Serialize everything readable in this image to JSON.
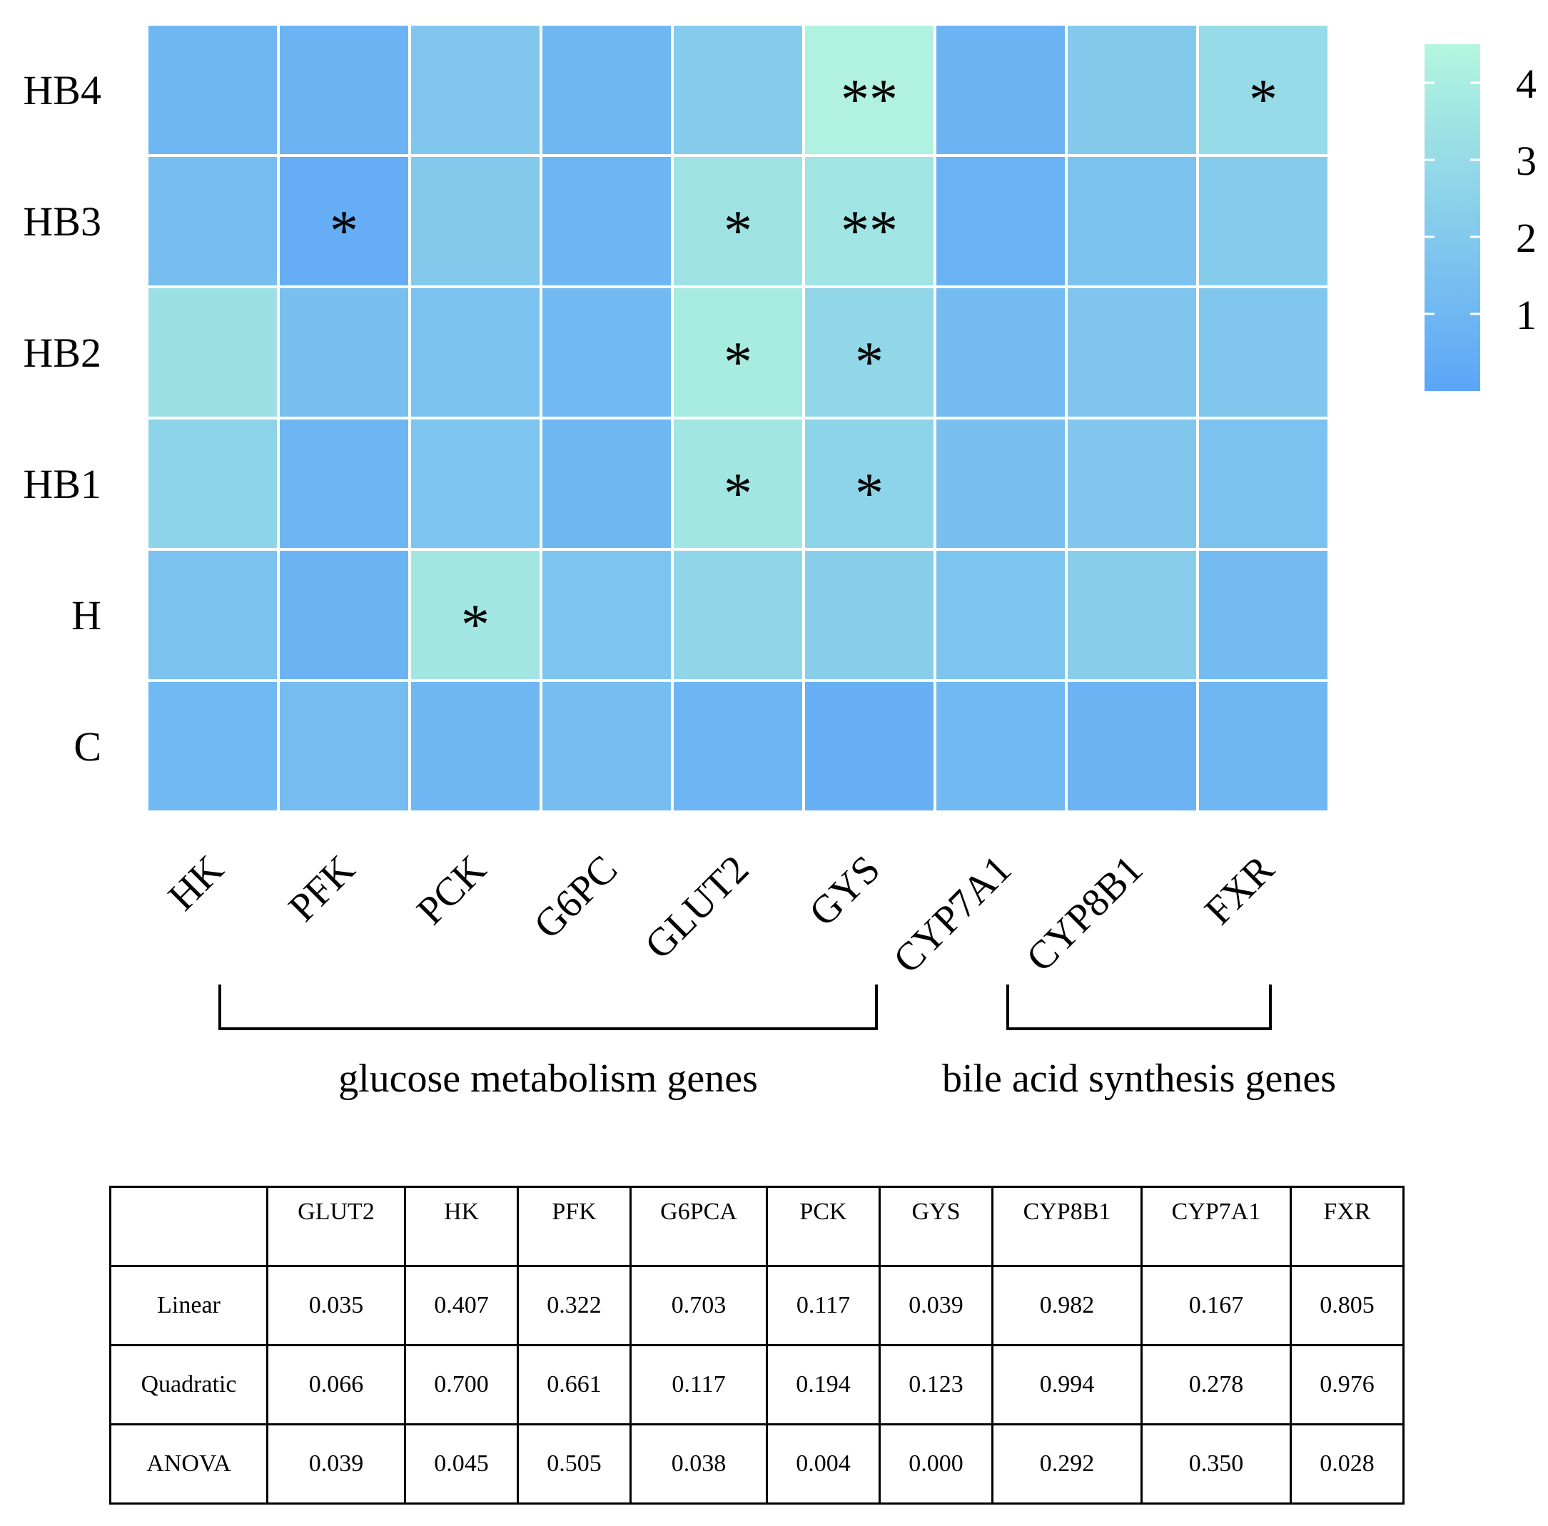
{
  "chart_data": [
    {
      "type": "heatmap",
      "title": "",
      "rows": [
        "HB4",
        "HB3",
        "HB2",
        "HB1",
        "H",
        "C"
      ],
      "columns": [
        "HK",
        "PFK",
        "PCK",
        "G6PC",
        "GLUT2",
        "GYS",
        "CYP7A1",
        "CYP8B1",
        "FXR"
      ],
      "values": [
        [
          1.0,
          0.8,
          1.9,
          1.0,
          2.1,
          4.3,
          0.8,
          2.0,
          3.0
        ],
        [
          1.4,
          0.5,
          2.0,
          0.9,
          3.4,
          3.5,
          0.7,
          1.6,
          2.1
        ],
        [
          3.3,
          1.5,
          1.6,
          1.1,
          3.9,
          2.8,
          1.2,
          1.8,
          1.9
        ],
        [
          2.6,
          0.9,
          1.7,
          1.0,
          3.6,
          2.6,
          1.5,
          1.9,
          1.6
        ],
        [
          1.6,
          0.8,
          3.6,
          1.7,
          2.7,
          2.3,
          1.7,
          2.3,
          1.2
        ],
        [
          1.1,
          1.3,
          1.0,
          1.4,
          0.9,
          0.6,
          1.1,
          0.8,
          1.0
        ]
      ],
      "significance": [
        [
          "",
          "",
          "",
          "",
          "",
          "**",
          "",
          "",
          "*"
        ],
        [
          "",
          "*",
          "",
          "",
          "*",
          "**",
          "",
          "",
          ""
        ],
        [
          "",
          "",
          "",
          "",
          "*",
          "*",
          "",
          "",
          ""
        ],
        [
          "",
          "",
          "",
          "",
          "*",
          "*",
          "",
          "",
          ""
        ],
        [
          "",
          "",
          "*",
          "",
          "",
          "",
          "",
          "",
          ""
        ],
        [
          "",
          "",
          "",
          "",
          "",
          "",
          "",
          "",
          ""
        ]
      ],
      "colorbar": {
        "range": [
          0,
          4.5
        ],
        "ticks": [
          1,
          2,
          3,
          4
        ],
        "colors": [
          "#5ba5f8",
          "#b4f6de"
        ]
      },
      "groups": [
        {
          "label": "glucose metabolism genes",
          "from": "HK",
          "to": "GYS"
        },
        {
          "label": "bile acid synthesis genes",
          "from": "CYP7A1",
          "to": "FXR"
        }
      ]
    },
    {
      "type": "table",
      "columns": [
        "",
        "GLUT2",
        "HK",
        "PFK",
        "G6PCA",
        "PCK",
        "GYS",
        "CYP8B1",
        "CYP7A1",
        "FXR"
      ],
      "rows": [
        [
          "Linear",
          "0.035",
          "0.407",
          "0.322",
          "0.703",
          "0.117",
          "0.039",
          "0.982",
          "0.167",
          "0.805"
        ],
        [
          "Quadratic",
          "0.066",
          "0.700",
          "0.661",
          "0.117",
          "0.194",
          "0.123",
          "0.994",
          "0.278",
          "0.976"
        ],
        [
          "ANOVA",
          "0.039",
          "0.045",
          "0.505",
          "0.038",
          "0.004",
          "0.000",
          "0.292",
          "0.350",
          "0.028"
        ]
      ]
    }
  ]
}
